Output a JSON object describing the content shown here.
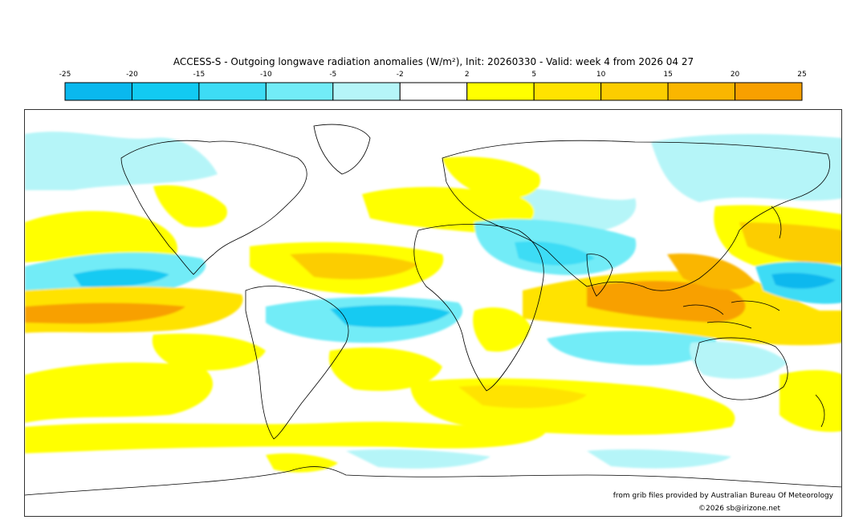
{
  "title": "ACCESS-S - Outgoing longwave radiation anomalies (W/m²), Init: 20260330 - Valid: week 4 from 2026 04 27",
  "legend": {
    "ticks": [
      "-25",
      "-20",
      "-15",
      "-10",
      "-5",
      "-2",
      "2",
      "5",
      "10",
      "15",
      "20",
      "25"
    ],
    "colors": [
      "#0ab8ee",
      "#12caf2",
      "#3ddcf5",
      "#72ecf7",
      "#b5f5f8",
      "#ffffff",
      "#ffff00",
      "#ffe300",
      "#fccd00",
      "#fab600",
      "#f8a000"
    ]
  },
  "credits": {
    "source": "from grib files provided by Australian Bureau Of Meteorology",
    "copyright": "©2026 sb@irizone.net"
  }
}
